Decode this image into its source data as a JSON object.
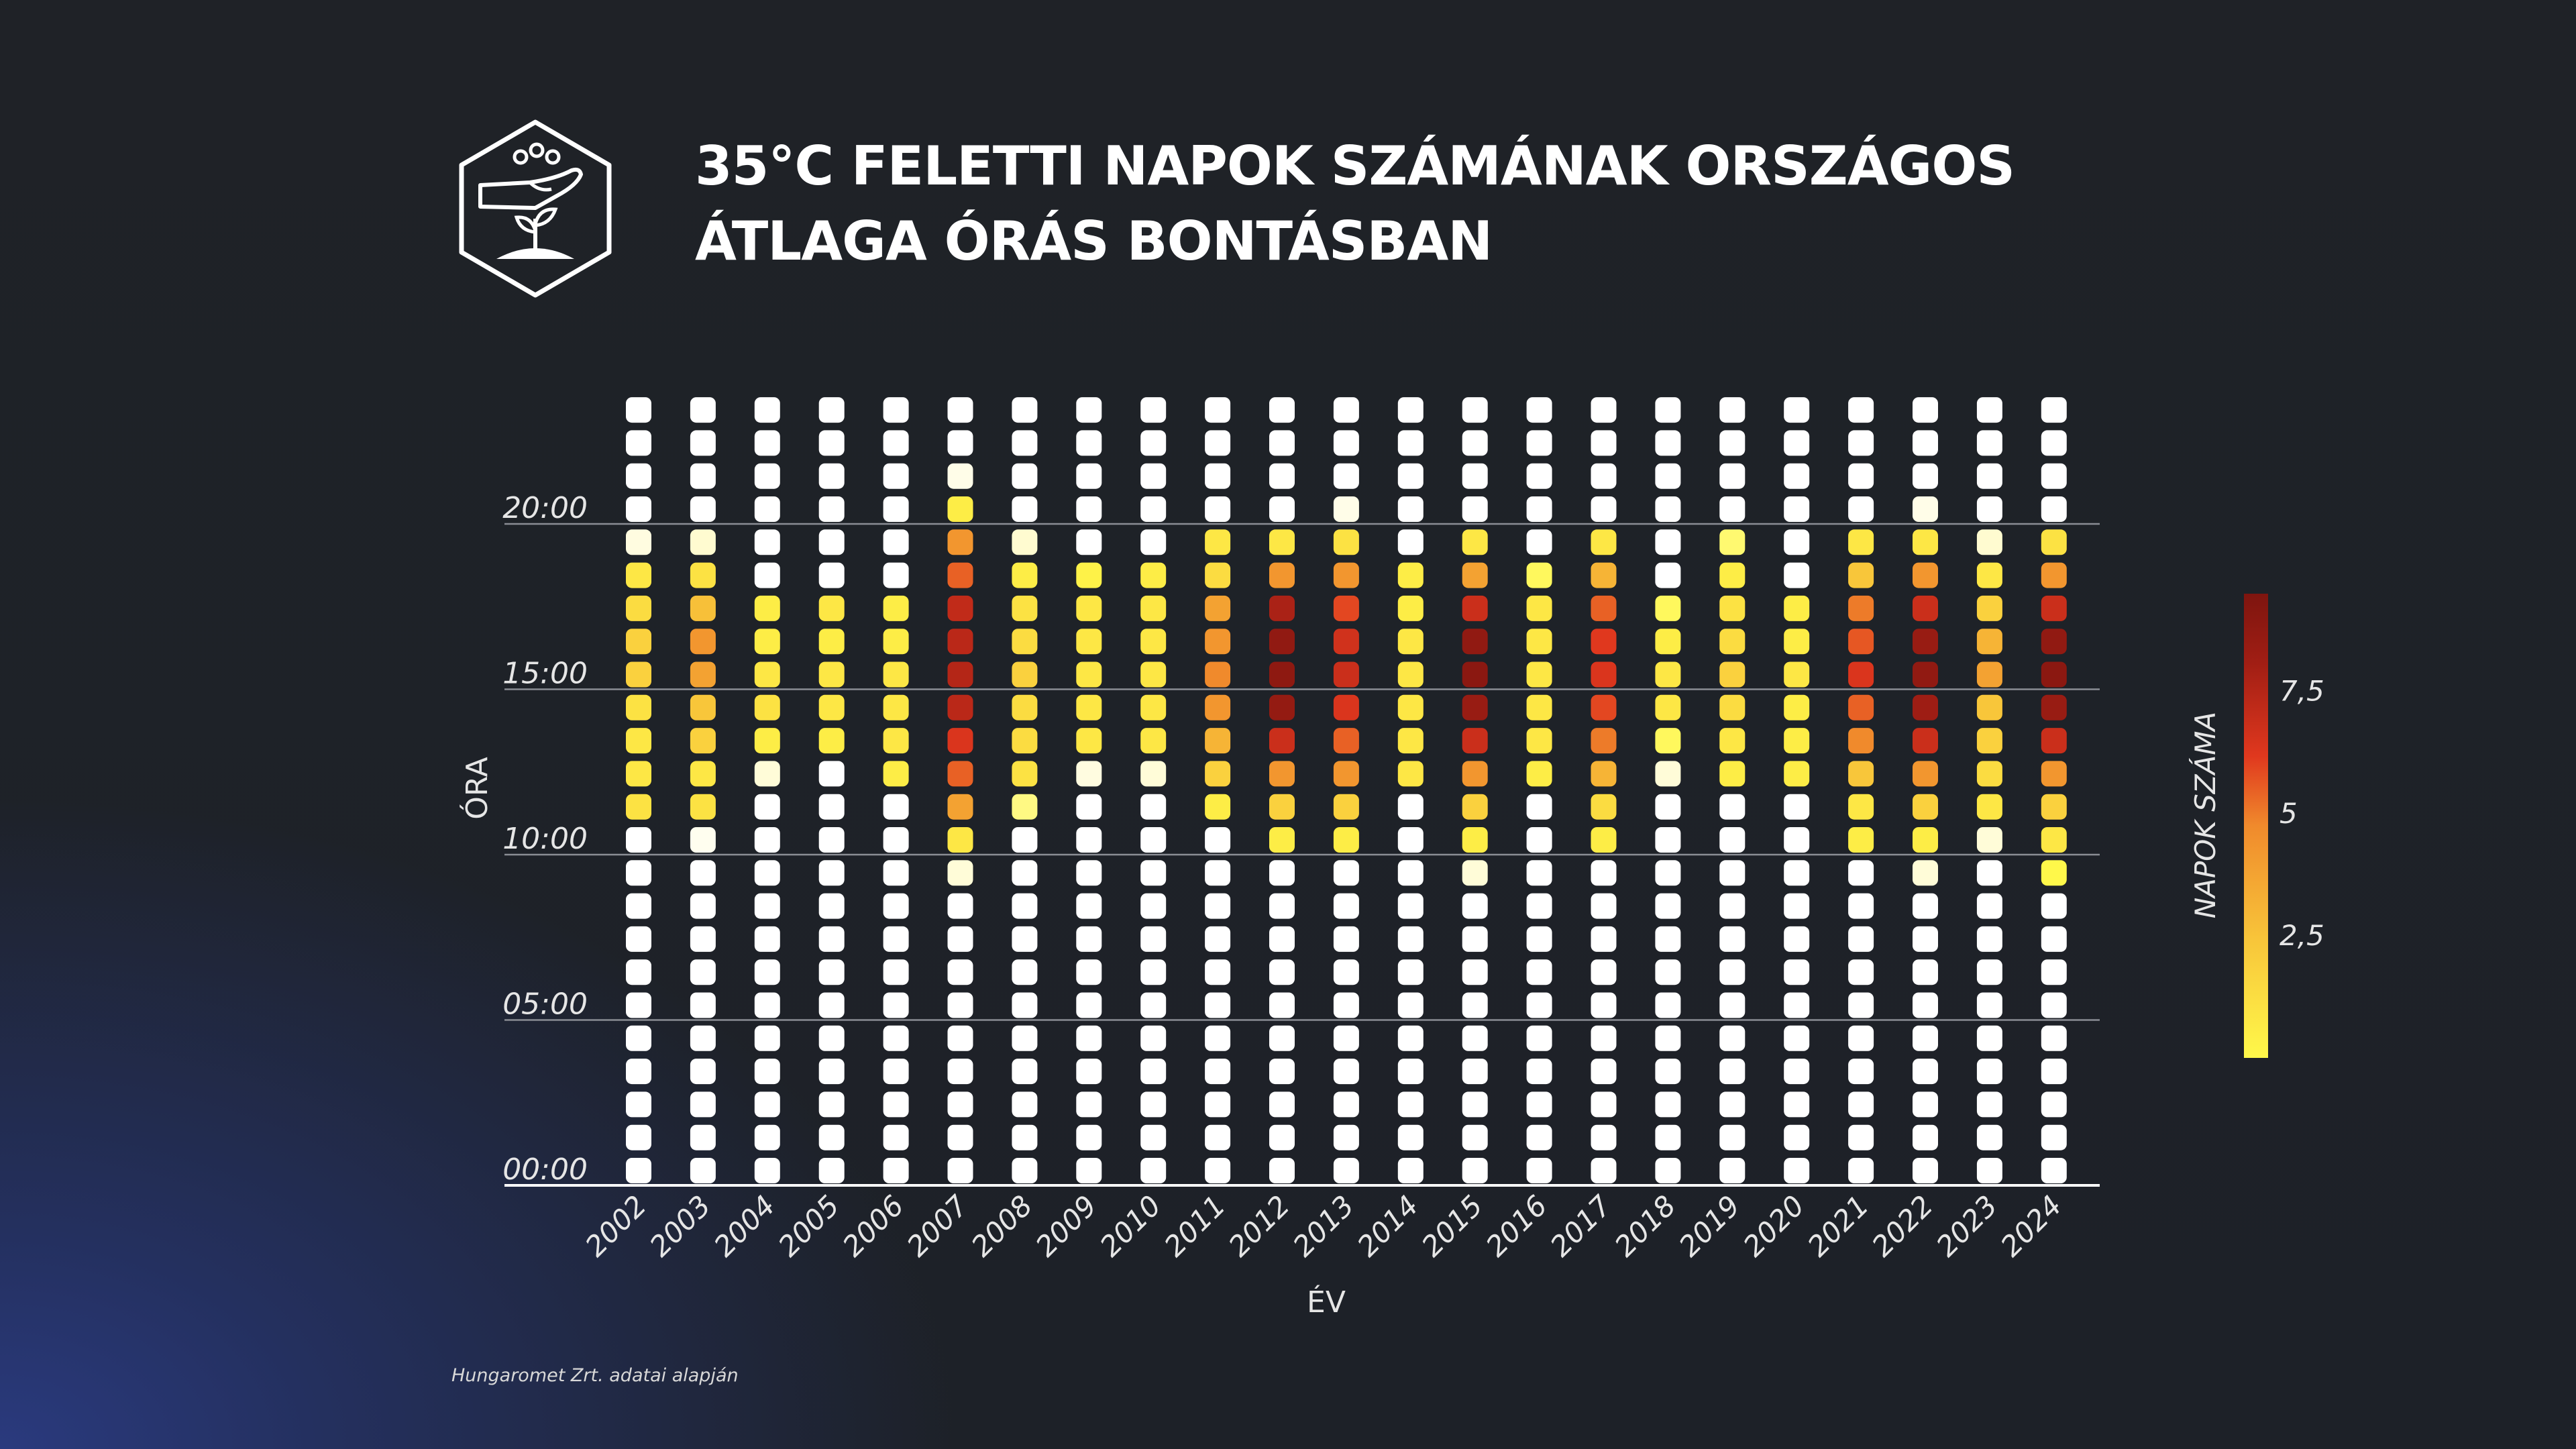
{
  "header": {
    "title_line1": "35°C FELETTI NAPOK SZÁMÁNAK ORSZÁGOS",
    "title_line2": "ÁTLAGA ÓRÁS BONTÁSBAN"
  },
  "footer": {
    "source": "Hungaromet Zrt. adatai alapján"
  },
  "chart_data": {
    "type": "heatmap",
    "title": "35°C FELETTI NAPOK SZÁMÁNAK ORSZÁGOS ÁTLAGA ÓRÁS BONTÁSBAN",
    "xlabel": "ÉV",
    "ylabel": "ÓRA",
    "x": [
      "2002",
      "2003",
      "2004",
      "2005",
      "2006",
      "2007",
      "2008",
      "2009",
      "2010",
      "2011",
      "2012",
      "2013",
      "2014",
      "2015",
      "2016",
      "2017",
      "2018",
      "2019",
      "2020",
      "2021",
      "2022",
      "2023",
      "2024"
    ],
    "y_hours": [
      0,
      1,
      2,
      3,
      4,
      5,
      6,
      7,
      8,
      9,
      10,
      11,
      12,
      13,
      14,
      15,
      16,
      17,
      18,
      19,
      20,
      21,
      22,
      23
    ],
    "y_ticks": [
      {
        "hour": 0,
        "label": "00:00"
      },
      {
        "hour": 5,
        "label": "05:00"
      },
      {
        "hour": 10,
        "label": "10:00"
      },
      {
        "hour": 15,
        "label": "15:00"
      },
      {
        "hour": 20,
        "label": "20:00"
      }
    ],
    "colorbar": {
      "title": "NAPOK SZÁMA",
      "ticks": [
        {
          "value": 2.5,
          "label": "2,5"
        },
        {
          "value": 5,
          "label": "5"
        },
        {
          "value": 7.5,
          "label": "7,5"
        }
      ],
      "range": [
        0,
        9.5
      ],
      "colors": [
        "#ffffff",
        "#fffbd0",
        "#fff84a",
        "#f8c63a",
        "#f08a2c",
        "#e0381e",
        "#a11e14",
        "#7e150f"
      ]
    },
    "values_by_year": {
      "2002": [
        0,
        0,
        0,
        0,
        0,
        0,
        0,
        0,
        0,
        0,
        0,
        1.7,
        1.6,
        1.6,
        1.7,
        2.0,
        2.0,
        1.8,
        1.6,
        0.4,
        0,
        0,
        0,
        0
      ],
      "2003": [
        0,
        0,
        0,
        0,
        0,
        0,
        0,
        0,
        0,
        0,
        0.2,
        1.7,
        1.6,
        2.0,
        2.2,
        2.8,
        3.0,
        2.3,
        1.7,
        0.6,
        0,
        0,
        0,
        0
      ],
      "2004": [
        0,
        0,
        0,
        0,
        0,
        0,
        0,
        0,
        0,
        0,
        0,
        0,
        0.5,
        1.5,
        1.7,
        1.6,
        1.5,
        1.5,
        0,
        0,
        0,
        0,
        0,
        0
      ],
      "2005": [
        0,
        0,
        0,
        0,
        0,
        0,
        0,
        0,
        0,
        0,
        0,
        0,
        0,
        1.5,
        1.6,
        1.6,
        1.5,
        1.6,
        0,
        0,
        0,
        0,
        0,
        0
      ],
      "2006": [
        0,
        0,
        0,
        0,
        0,
        0,
        0,
        0,
        0,
        0,
        0,
        0,
        1.5,
        1.6,
        1.6,
        1.6,
        1.5,
        1.5,
        0,
        0,
        0,
        0,
        0,
        0
      ],
      "2007": [
        0,
        0,
        0,
        0,
        0,
        0,
        0,
        0,
        0,
        0.5,
        1.6,
        2.8,
        4.0,
        5.0,
        6.0,
        6.2,
        6.0,
        5.8,
        4.0,
        3.0,
        1.5,
        0.3,
        0,
        0
      ],
      "2008": [
        0,
        0,
        0,
        0,
        0,
        0,
        0,
        0,
        0,
        0,
        0,
        1.0,
        1.7,
        1.8,
        1.8,
        2.0,
        1.8,
        1.7,
        1.5,
        0.6,
        0,
        0,
        0,
        0
      ],
      "2009": [
        0,
        0,
        0,
        0,
        0,
        0,
        0,
        0,
        0,
        0,
        0,
        0,
        0.4,
        1.6,
        1.6,
        1.6,
        1.6,
        1.6,
        1.4,
        0,
        0,
        0,
        0,
        0
      ],
      "2010": [
        0,
        0,
        0,
        0,
        0,
        0,
        0,
        0,
        0,
        0,
        0,
        0,
        0.5,
        1.6,
        1.6,
        1.6,
        1.6,
        1.6,
        1.5,
        0,
        0,
        0,
        0,
        0
      ],
      "2011": [
        0,
        0,
        0,
        0,
        0,
        0,
        0,
        0,
        0,
        0,
        0,
        1.5,
        2.0,
        2.5,
        3.0,
        3.2,
        3.0,
        2.8,
        1.8,
        1.6,
        0,
        0,
        0,
        0
      ],
      "2012": [
        0,
        0,
        0,
        0,
        0,
        0,
        0,
        0,
        0,
        0,
        1.5,
        2.0,
        3.0,
        5.5,
        7.8,
        8.3,
        8.0,
        6.5,
        3.0,
        1.6,
        0,
        0,
        0,
        0
      ],
      "2013": [
        0,
        0,
        0,
        0,
        0,
        0,
        0,
        0,
        0,
        0,
        1.5,
        2.0,
        3.0,
        4.0,
        5.0,
        5.5,
        5.3,
        4.5,
        3.0,
        1.7,
        0.3,
        0,
        0,
        0
      ],
      "2014": [
        0,
        0,
        0,
        0,
        0,
        0,
        0,
        0,
        0,
        0,
        0,
        0,
        1.6,
        1.6,
        1.6,
        1.6,
        1.6,
        1.5,
        1.5,
        0,
        0,
        0,
        0,
        0
      ],
      "2015": [
        0,
        0,
        0,
        0,
        0,
        0,
        0,
        0,
        0,
        0.5,
        1.5,
        2.0,
        3.0,
        5.5,
        7.5,
        8.5,
        8.0,
        5.5,
        2.8,
        1.6,
        0,
        0,
        0,
        0
      ],
      "2016": [
        0,
        0,
        0,
        0,
        0,
        0,
        0,
        0,
        0,
        0,
        0,
        0,
        1.5,
        1.6,
        1.6,
        1.6,
        1.6,
        1.6,
        1.2,
        0,
        0,
        0,
        0,
        0
      ],
      "2017": [
        0,
        0,
        0,
        0,
        0,
        0,
        0,
        0,
        0,
        0,
        1.5,
        1.8,
        2.5,
        3.5,
        4.5,
        5.0,
        4.8,
        4.0,
        2.5,
        1.6,
        0,
        0,
        0,
        0
      ],
      "2018": [
        0,
        0,
        0,
        0,
        0,
        0,
        0,
        0,
        0,
        0,
        0,
        0,
        0.5,
        1.2,
        1.6,
        1.6,
        1.5,
        1.2,
        0,
        0,
        0,
        0,
        0,
        0
      ],
      "2019": [
        0,
        0,
        0,
        0,
        0,
        0,
        0,
        0,
        0,
        0,
        0,
        0,
        1.5,
        1.6,
        1.8,
        2.0,
        1.8,
        1.7,
        1.5,
        1.1,
        0,
        0,
        0,
        0
      ],
      "2020": [
        0,
        0,
        0,
        0,
        0,
        0,
        0,
        0,
        0,
        0,
        0,
        0,
        1.5,
        1.5,
        1.5,
        1.6,
        1.5,
        1.5,
        0,
        0,
        0,
        0,
        0,
        0
      ],
      "2021": [
        0,
        0,
        0,
        0,
        0,
        0,
        0,
        0,
        0,
        0,
        1.5,
        1.6,
        2.2,
        3.2,
        4.0,
        5.0,
        4.2,
        3.5,
        2.2,
        1.6,
        0,
        0,
        0,
        0
      ],
      "2022": [
        0,
        0,
        0,
        0,
        0,
        0,
        0,
        0,
        0,
        0.5,
        1.5,
        2.0,
        3.0,
        5.5,
        7.0,
        8.0,
        7.5,
        5.5,
        3.0,
        1.6,
        0.3,
        0,
        0,
        0
      ],
      "2023": [
        0,
        0,
        0,
        0,
        0,
        0,
        0,
        0,
        0,
        0,
        0.5,
        1.6,
        1.8,
        2.0,
        2.2,
        2.8,
        2.5,
        2.0,
        1.6,
        0.6,
        0,
        0,
        0,
        0
      ],
      "2024": [
        0,
        0,
        0,
        0,
        0,
        0,
        0,
        0,
        0,
        1.3,
        1.6,
        2.0,
        3.0,
        5.5,
        7.5,
        8.5,
        8.0,
        5.5,
        3.0,
        1.7,
        0,
        0,
        0,
        0
      ]
    }
  }
}
